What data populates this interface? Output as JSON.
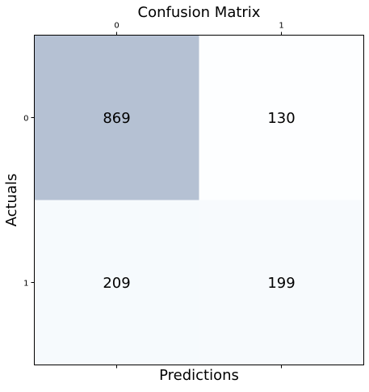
{
  "chart_data": {
    "type": "heatmap",
    "title": "Confusion Matrix",
    "xlabel": "Predictions",
    "ylabel": "Actuals",
    "x_categories": [
      "0",
      "1"
    ],
    "y_categories": [
      "0",
      "1"
    ],
    "values": [
      [
        869,
        130
      ],
      [
        209,
        199
      ]
    ],
    "colormap": "Blues",
    "cell_alpha": 0.3,
    "x_ticks_position": "top",
    "grid": false
  }
}
